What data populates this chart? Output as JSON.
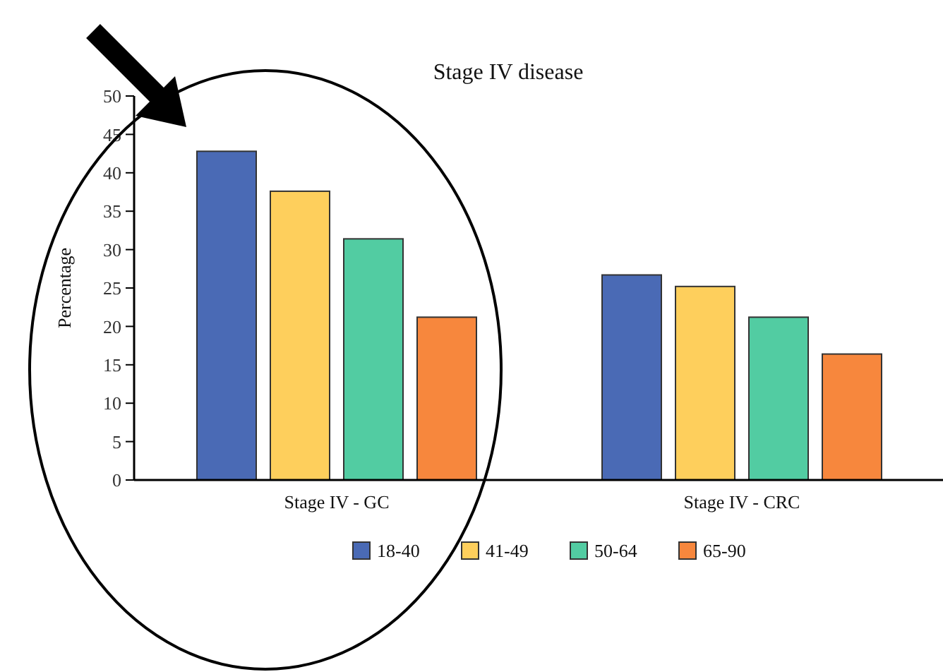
{
  "chart_data": {
    "type": "bar",
    "title": "Stage IV disease",
    "ylabel": "Percentage",
    "categories": [
      "Stage IV - GC",
      "Stage IV - CRC"
    ],
    "series": [
      {
        "name": "18-40",
        "color": "#4a6ab5",
        "values": [
          42.8,
          26.7
        ]
      },
      {
        "name": "41-49",
        "color": "#fecf5c",
        "values": [
          37.6,
          25.2
        ]
      },
      {
        "name": "50-64",
        "color": "#52cca2",
        "values": [
          31.4,
          21.2
        ]
      },
      {
        "name": "65-90",
        "color": "#f7873d",
        "values": [
          21.2,
          16.4
        ]
      }
    ],
    "ylim": [
      0,
      50
    ],
    "yticks": [
      0,
      5,
      10,
      15,
      20,
      25,
      30,
      35,
      40,
      45,
      50
    ],
    "grid": false,
    "legend": "bottom"
  }
}
